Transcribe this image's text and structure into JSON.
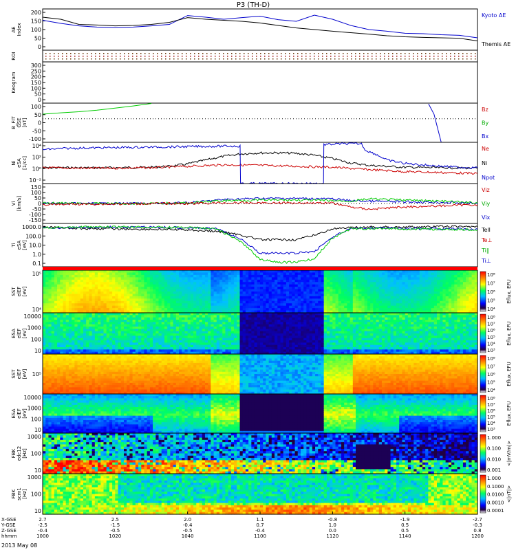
{
  "title": "P3 (TH-D)",
  "date": "2013 May 08",
  "chart_data": {
    "type": "line",
    "title": "P3 (TH-D)",
    "x_time_labels": [
      "1000",
      "1020",
      "1040",
      "1100",
      "1120",
      "1140",
      "1200"
    ],
    "footer_rows": [
      {
        "label": "X-GSE",
        "values": [
          "2.7",
          "2.5",
          "2.0",
          "1.1",
          "-0.8",
          "-1.9",
          "-2.7"
        ]
      },
      {
        "label": "Y-GSE",
        "values": [
          "-2.5",
          "-1.5",
          "-0.4",
          "0.7",
          "1.0",
          "0.5",
          "-0.3"
        ]
      },
      {
        "label": "Z-GSE",
        "values": [
          "-0.4",
          "-0.5",
          "-0.5",
          "-0.4",
          "0.0",
          "0.5",
          "0.8"
        ]
      },
      {
        "label": "hhmm",
        "values": [
          "1000",
          "1020",
          "1040",
          "1100",
          "1120",
          "1140",
          "1200"
        ]
      }
    ],
    "panels": [
      {
        "id": "ae",
        "ylabel": "AE Index",
        "ylim": [
          0,
          200
        ],
        "yticks": [
          "200",
          "150",
          "100",
          "50",
          "0"
        ],
        "legend": [
          {
            "name": "Kyoto AE",
            "color": "#0000cc"
          },
          {
            "name": "Themis AE",
            "color": "#000000"
          }
        ],
        "series": [
          {
            "name": "Kyoto AE",
            "color": "#0000cc",
            "x": [
              0,
              5,
              10,
              15,
              20,
              25,
              30,
              35,
              40,
              45,
              50,
              55,
              60,
              65,
              70,
              75,
              80,
              85,
              90,
              95,
              100,
              105,
              110,
              115,
              120
            ],
            "values": [
              145,
              130,
              118,
              112,
              110,
              112,
              118,
              125,
              168,
              160,
              150,
              158,
              165,
              148,
              140,
              170,
              150,
              120,
              100,
              92,
              82,
              80,
              75,
              72,
              60
            ]
          },
          {
            "name": "Themis AE",
            "color": "#000000",
            "x": [
              0,
              5,
              10,
              15,
              20,
              25,
              30,
              35,
              40,
              45,
              50,
              55,
              60,
              65,
              70,
              75,
              80,
              85,
              90,
              95,
              100,
              105,
              110,
              115,
              120
            ],
            "values": [
              160,
              150,
              125,
              122,
              118,
              120,
              125,
              135,
              158,
              150,
              145,
              140,
              132,
              120,
              108,
              100,
              92,
              85,
              78,
              70,
              65,
              62,
              60,
              58,
              45
            ]
          }
        ]
      },
      {
        "id": "roi",
        "ylabel": "ROI",
        "yticks": []
      },
      {
        "id": "keogram",
        "ylabel": "Keogram",
        "ylim": [
          0,
          300
        ],
        "yticks": [
          "300",
          "250",
          "200",
          "150",
          "100",
          "50",
          "0"
        ]
      },
      {
        "id": "bfit",
        "ylabel": "B_FIT GSE [nT]",
        "ylim": [
          -150,
          100
        ],
        "yticks": [
          "100",
          "50",
          "0",
          "-50",
          "-100"
        ],
        "legend": [
          {
            "name": "Bz",
            "color": "#cc0000"
          },
          {
            "name": "By",
            "color": "#00aa00"
          },
          {
            "name": "Bx",
            "color": "#0000cc"
          }
        ],
        "series": [
          {
            "name": "By",
            "color": "#00cc00",
            "x": [
              0,
              5,
              10,
              15,
              20,
              25,
              30
            ],
            "values": [
              30,
              38,
              45,
              55,
              68,
              82,
              98
            ]
          },
          {
            "name": "Bx",
            "color": "#0000cc",
            "x": [
              106.5,
              108,
              110
            ],
            "values": [
              95,
              30,
              -150
            ]
          }
        ]
      },
      {
        "id": "ni",
        "ylabel": "Ni eSA [1/cc]",
        "log": true,
        "ylim_log": [
          -3.3,
          5.3
        ],
        "yticks": [
          "10^4",
          "10^2",
          "10^0",
          "10^-2"
        ],
        "legend": [
          {
            "name": "Ne",
            "color": "#cc0000"
          },
          {
            "name": "Ni",
            "color": "#000000"
          },
          {
            "name": "Npot",
            "color": "#0000cc"
          }
        ],
        "series": [
          {
            "name": "Ni",
            "color": "#000000",
            "x": [
              0,
              10,
              20,
              30,
              35,
              40,
              45,
              50,
              55,
              60,
              65,
              70,
              75,
              80,
              85,
              90,
              95,
              100,
              110,
              120
            ],
            "values_log": [
              0,
              0,
              0,
              0.1,
              0.3,
              0.8,
              1.6,
              2.4,
              2.9,
              3.1,
              3.1,
              3.0,
              2.6,
              1.9,
              1.0,
              0.5,
              0.3,
              0.1,
              0.0,
              -0.1
            ]
          },
          {
            "name": "Ne",
            "color": "#cc0000",
            "x": [
              0,
              10,
              20,
              30,
              40,
              50,
              60,
              70,
              80,
              90,
              100,
              110,
              120
            ],
            "values_log": [
              0,
              -0.1,
              -0.1,
              0,
              0.3,
              0.6,
              0.5,
              0.3,
              0.1,
              -0.4,
              -0.8,
              -1.0,
              -1.2
            ]
          },
          {
            "name": "Npot",
            "color": "#0000cc",
            "x": [
              0,
              5,
              10,
              20,
              30,
              40,
              50,
              54.5,
              54.6,
              77.5,
              77.6,
              82,
              88,
              89,
              92,
              95,
              100,
              105,
              110,
              115,
              120
            ],
            "values_log": [
              3.8,
              4.0,
              4.1,
              4.2,
              4.3,
              4.4,
              4.5,
              4.5,
              -3.3,
              -3.3,
              4.8,
              5.0,
              5.0,
              3.7,
              2.8,
              1.6,
              0.9,
              0.6,
              0.3,
              0.1,
              0.0
            ]
          }
        ]
      },
      {
        "id": "vi",
        "ylabel": "Vi [km/s]",
        "ylim": [
          -175,
          175
        ],
        "yticks": [
          "150",
          "100",
          "50",
          "0",
          "-50",
          "-100",
          "-150"
        ],
        "legend": [
          {
            "name": "Viz",
            "color": "#cc0000"
          },
          {
            "name": "Viy",
            "color": "#00aa00"
          },
          {
            "name": "Vix",
            "color": "#0000cc"
          }
        ],
        "series": [
          {
            "name": "Vix",
            "color": "#0000cc",
            "x": [
              0,
              10,
              20,
              30,
              40,
              45,
              50,
              60,
              70,
              80,
              85,
              90,
              100,
              110,
              120
            ],
            "values": [
              0,
              0,
              0,
              0,
              5,
              20,
              35,
              45,
              45,
              40,
              25,
              20,
              15,
              10,
              0
            ]
          },
          {
            "name": "Viy",
            "color": "#00cc00",
            "x": [
              0,
              10,
              20,
              30,
              40,
              45,
              50,
              60,
              70,
              80,
              85,
              90,
              95,
              100,
              110,
              120
            ],
            "values": [
              5,
              0,
              0,
              0,
              5,
              15,
              25,
              30,
              30,
              25,
              20,
              40,
              35,
              30,
              20,
              5
            ]
          },
          {
            "name": "Viz",
            "color": "#cc0000",
            "x": [
              0,
              10,
              20,
              30,
              40,
              50,
              60,
              70,
              80,
              85,
              90,
              95,
              100,
              110,
              120
            ],
            "values": [
              -10,
              -5,
              -5,
              0,
              0,
              5,
              5,
              5,
              5,
              -30,
              -50,
              -40,
              -30,
              -20,
              -10
            ]
          }
        ]
      },
      {
        "id": "ti",
        "ylabel": "Ti eSA [eV]",
        "log": true,
        "ylim_log": [
          -1.4,
          3.4
        ],
        "yticks": [
          "1000.0",
          "100.0",
          "10.0",
          "1.0",
          "0.1"
        ],
        "legend": [
          {
            "name": "Tell",
            "color": "#000000"
          },
          {
            "name": "Te⊥",
            "color": "#cc0000"
          },
          {
            "name": "Ti∥",
            "color": "#00aa00"
          },
          {
            "name": "Ti⊥",
            "color": "#0000cc"
          }
        ],
        "series": [
          {
            "name": "Tell",
            "color": "#000000",
            "x": [
              0,
              10,
              20,
              30,
              40,
              50,
              55,
              60,
              65,
              70,
              75,
              80,
              90,
              100,
              110,
              120
            ],
            "values_log": [
              3,
              2.85,
              2.8,
              2.75,
              2.7,
              2.45,
              2.1,
              1.6,
              1.6,
              1.6,
              2.1,
              2.8,
              3.0,
              3.0,
              3.05,
              3.05
            ]
          },
          {
            "name": "Ti⊥",
            "color": "#0000cc",
            "x": [
              0,
              10,
              20,
              30,
              40,
              48,
              55,
              60,
              65,
              70,
              75,
              80,
              85,
              90,
              100,
              110,
              120
            ],
            "values_log": [
              2.9,
              2.95,
              3.0,
              3.0,
              2.95,
              2.8,
              1.6,
              0.1,
              0.1,
              0.1,
              0.3,
              1.9,
              2.8,
              2.9,
              2.85,
              2.8,
              2.75
            ]
          },
          {
            "name": "Ti∥",
            "color": "#00cc00",
            "x": [
              0,
              10,
              20,
              30,
              40,
              48,
              55,
              60,
              65,
              70,
              75,
              80,
              85,
              90,
              100,
              110,
              120
            ],
            "values_log": [
              2.95,
              3.0,
              3.0,
              3.0,
              2.95,
              2.8,
              1.3,
              -0.6,
              -0.9,
              -0.9,
              -0.5,
              1.8,
              2.8,
              2.85,
              2.8,
              2.75,
              2.7
            ]
          }
        ]
      },
      {
        "id": "sst_eflux1",
        "ylabel": "SST elEF [eV]",
        "yticks": [
          "10^5",
          "10^4"
        ],
        "cbar_label": "Eflux, EFU",
        "cbar_ticks": [
          "10^8",
          "10^7",
          "10^6",
          "10^5",
          "10^4"
        ]
      },
      {
        "id": "esa_eflux1",
        "ylabel": "ESA elEF [eV]",
        "yticks": [
          "10000",
          "1000",
          "100",
          "10"
        ],
        "cbar_label": "Eflux, EFU",
        "cbar_ticks": [
          "10^8",
          "10^7",
          "10^6",
          "10^5",
          "10^4",
          "10^3"
        ]
      },
      {
        "id": "sst_eflux2",
        "ylabel": "SST elEF [eV]",
        "yticks": [
          "10^5"
        ],
        "cbar_label": "Eflux, EFU",
        "cbar_ticks": [
          "10^8",
          "10^7",
          "10^6",
          "10^5",
          "10^4"
        ]
      },
      {
        "id": "esa_eflux2",
        "ylabel": "ESA elEF [eV]",
        "yticks": [
          "10000",
          "1000",
          "100",
          "10"
        ],
        "cbar_label": "Eflux, EFU",
        "cbar_ticks": [
          "10^8",
          "10^7",
          "10^6",
          "10^5",
          "10^4",
          "10^3"
        ]
      },
      {
        "id": "fbk_edc",
        "ylabel": "FBK edc12 [Hz]",
        "yticks": [
          "1000",
          "100",
          "10"
        ],
        "cbar_label": "<|mV/m|>",
        "cbar_ticks": [
          "1.000",
          "0.100",
          "0.010",
          "0.001"
        ]
      },
      {
        "id": "fbk_scm",
        "ylabel": "FBK scm1 [Hz]",
        "yticks": [
          "1000",
          "100",
          "10"
        ],
        "cbar_label": "<|nT|>",
        "cbar_ticks": [
          "1.000",
          "0.1000",
          "0.0100",
          "0.0010",
          "0.0001"
        ]
      }
    ]
  }
}
